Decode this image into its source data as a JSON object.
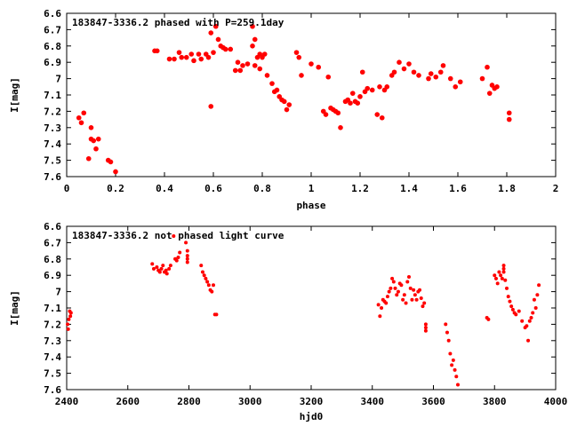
{
  "chart_data": [
    {
      "type": "scatter",
      "title": "183847-3336.2 phased with P=259.1day",
      "xlabel": "phase",
      "ylabel": "I[mag]",
      "xlim": [
        0,
        2
      ],
      "ylim": [
        6.6,
        7.6
      ],
      "y_inverted": true,
      "xticks": [
        "0",
        "0.2",
        "0.4",
        "0.6",
        "0.8",
        "1",
        "1.2",
        "1.4",
        "1.6",
        "1.8",
        "2"
      ],
      "yticks": [
        "6.6",
        "6.7",
        "6.8",
        "6.9",
        "7",
        "7.1",
        "7.2",
        "7.3",
        "7.4",
        "7.5",
        "7.6"
      ],
      "marker_color": "#ff0000",
      "series": [
        {
          "x": [
            0.05,
            0.07,
            0.06,
            0.09,
            0.1,
            0.11,
            0.12,
            0.1,
            0.13,
            0.17,
            0.18,
            0.2,
            0.36,
            0.37,
            0.42,
            0.44,
            0.46,
            0.47,
            0.49,
            0.51,
            0.52,
            0.54,
            0.55,
            0.57,
            0.58,
            0.59,
            0.6,
            0.59,
            0.61,
            0.62,
            0.63,
            0.64,
            0.65,
            0.67,
            0.69,
            0.7,
            0.71,
            0.72,
            0.74,
            0.76,
            0.76,
            0.77,
            0.78,
            0.77,
            0.79,
            0.8,
            0.79,
            0.81,
            0.82,
            0.84,
            0.85,
            0.86,
            0.87,
            0.88,
            0.89,
            0.9,
            0.91,
            0.94,
            0.95,
            0.96,
            1.0,
            1.03,
            1.05,
            1.06,
            1.07,
            1.08,
            1.09,
            1.1,
            1.11,
            1.12,
            1.14,
            1.15,
            1.16,
            1.17,
            1.18,
            1.19,
            1.2,
            1.21,
            1.22,
            1.23,
            1.25,
            1.27,
            1.28,
            1.29,
            1.3,
            1.31,
            1.33,
            1.34,
            1.36,
            1.38,
            1.4,
            1.42,
            1.44,
            1.48,
            1.49,
            1.51,
            1.53,
            1.54,
            1.57,
            1.59,
            1.61,
            1.7,
            1.72,
            1.73,
            1.74,
            1.75,
            1.76,
            1.81,
            1.81
          ],
          "y": [
            7.24,
            7.21,
            7.27,
            7.49,
            7.37,
            7.38,
            7.43,
            7.3,
            7.37,
            7.5,
            7.51,
            7.57,
            6.83,
            6.83,
            6.88,
            6.88,
            6.84,
            6.87,
            6.87,
            6.85,
            6.89,
            6.85,
            6.88,
            6.85,
            6.87,
            7.17,
            6.84,
            6.72,
            6.68,
            6.76,
            6.8,
            6.81,
            6.82,
            6.82,
            6.95,
            6.9,
            6.95,
            6.92,
            6.91,
            6.68,
            6.8,
            6.76,
            6.87,
            6.92,
            6.94,
            6.87,
            6.85,
            6.85,
            6.98,
            7.03,
            7.08,
            7.07,
            7.11,
            7.13,
            7.14,
            7.19,
            7.16,
            6.84,
            6.87,
            6.98,
            6.91,
            6.93,
            7.2,
            7.22,
            6.99,
            7.18,
            7.19,
            7.2,
            7.21,
            7.3,
            7.14,
            7.13,
            7.15,
            7.09,
            7.14,
            7.15,
            7.11,
            6.96,
            7.08,
            7.06,
            7.07,
            7.22,
            7.05,
            7.24,
            7.07,
            7.05,
            6.98,
            6.96,
            6.9,
            6.94,
            6.91,
            6.96,
            6.98,
            7.0,
            6.97,
            6.99,
            6.96,
            6.92,
            7.0,
            7.05,
            7.02,
            7.0,
            6.93,
            7.09,
            7.04,
            7.06,
            7.05,
            7.21,
            7.25
          ]
        }
      ]
    },
    {
      "type": "scatter",
      "title": "183847-3336.2 not phased light curve",
      "xlabel": "hjd0",
      "ylabel": "I[mag]",
      "xlim": [
        2400,
        4000
      ],
      "ylim": [
        6.6,
        7.6
      ],
      "y_inverted": true,
      "xticks": [
        "2400",
        "2600",
        "2800",
        "3000",
        "3200",
        "3400",
        "3600",
        "3800",
        "4000"
      ],
      "yticks": [
        "6.6",
        "6.7",
        "6.8",
        "6.9",
        "7",
        "7.1",
        "7.2",
        "7.3",
        "7.4",
        "7.5",
        "7.6"
      ],
      "marker_color": "#ff0000",
      "series": [
        {
          "x": [
            2403,
            2405,
            2407,
            2410,
            2412,
            2414,
            2680,
            2685,
            2695,
            2700,
            2705,
            2710,
            2715,
            2720,
            2725,
            2728,
            2735,
            2740,
            2750,
            2755,
            2760,
            2765,
            2770,
            2790,
            2795,
            2795,
            2795,
            2795,
            2840,
            2845,
            2850,
            2855,
            2860,
            2865,
            2870,
            2875,
            2880,
            2885,
            2890,
            3420,
            3425,
            3430,
            3435,
            3440,
            3445,
            3450,
            3455,
            3460,
            3465,
            3470,
            3475,
            3480,
            3485,
            3490,
            3495,
            3500,
            3505,
            3510,
            3515,
            3520,
            3525,
            3530,
            3535,
            3540,
            3545,
            3550,
            3555,
            3560,
            3565,
            3570,
            3575,
            3575,
            3575,
            3640,
            3645,
            3650,
            3655,
            3660,
            3665,
            3670,
            3675,
            3680,
            3775,
            3780,
            3800,
            3805,
            3810,
            3815,
            3820,
            3825,
            3830,
            3830,
            3830,
            3835,
            3840,
            3845,
            3850,
            3855,
            3860,
            3865,
            3870,
            3880,
            3890,
            3900,
            3905,
            3910,
            3915,
            3920,
            3925,
            3930,
            3935,
            3940,
            3945
          ],
          "y": [
            7.2,
            7.23,
            7.17,
            7.12,
            7.15,
            7.13,
            6.83,
            6.86,
            6.85,
            6.87,
            6.88,
            6.86,
            6.84,
            6.88,
            6.87,
            6.89,
            6.86,
            6.84,
            6.66,
            6.8,
            6.81,
            6.79,
            6.76,
            6.7,
            6.75,
            6.78,
            6.8,
            6.82,
            6.84,
            6.88,
            6.9,
            6.92,
            6.94,
            6.96,
            6.99,
            7.0,
            6.96,
            7.14,
            7.14,
            7.08,
            7.15,
            7.1,
            7.05,
            7.06,
            7.07,
            7.03,
            7.0,
            6.98,
            6.92,
            6.94,
            6.98,
            7.02,
            7.0,
            6.95,
            6.96,
            7.05,
            7.02,
            7.07,
            6.94,
            6.91,
            6.98,
            7.05,
            6.99,
            7.02,
            7.05,
            7.0,
            6.99,
            7.04,
            7.09,
            7.07,
            7.2,
            7.22,
            7.24,
            7.2,
            7.25,
            7.3,
            7.38,
            7.45,
            7.42,
            7.48,
            7.52,
            7.57,
            7.16,
            7.17,
            6.9,
            6.92,
            6.95,
            6.88,
            6.9,
            6.92,
            6.86,
            6.84,
            6.88,
            6.93,
            6.98,
            7.03,
            7.06,
            7.09,
            7.11,
            7.13,
            7.14,
            7.12,
            7.18,
            7.22,
            7.21,
            7.3,
            7.18,
            7.16,
            7.13,
            7.05,
            7.1,
            7.02,
            6.96
          ]
        }
      ]
    }
  ]
}
